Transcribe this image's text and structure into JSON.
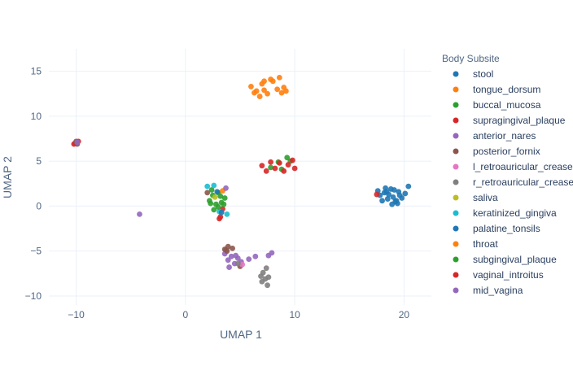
{
  "chart_data": {
    "type": "scatter",
    "title": "",
    "xlabel": "UMAP 1",
    "ylabel": "UMAP 2",
    "xlim": [
      -12.5,
      22.5
    ],
    "ylim": [
      -11,
      17.5
    ],
    "xticks": [
      -10,
      0,
      10,
      20
    ],
    "yticks": [
      -10,
      -5,
      0,
      5,
      10,
      15
    ],
    "grid": true,
    "legend_title": "Body Subsite",
    "legend_position": "right",
    "series": [
      {
        "name": "stool",
        "color": "#1f77b4",
        "points": [
          [
            17.8,
            1.2
          ],
          [
            18.2,
            1.5
          ],
          [
            18.5,
            0.8
          ],
          [
            18.8,
            1.9
          ],
          [
            19.0,
            1.0
          ],
          [
            19.2,
            0.5
          ],
          [
            19.5,
            1.6
          ],
          [
            19.8,
            0.9
          ],
          [
            18.0,
            0.6
          ],
          [
            18.6,
            1.3
          ],
          [
            19.1,
            1.8
          ],
          [
            19.4,
            0.3
          ],
          [
            17.6,
            1.7
          ],
          [
            18.9,
            0.2
          ],
          [
            20.4,
            2.2
          ],
          [
            20.1,
            1.4
          ],
          [
            18.3,
            2.0
          ],
          [
            19.6,
            1.2
          ]
        ]
      },
      {
        "name": "tongue_dorsum",
        "color": "#ff7f0e",
        "points": [
          [
            6.0,
            13.3
          ],
          [
            6.5,
            12.8
          ],
          [
            7.0,
            13.6
          ],
          [
            7.5,
            12.5
          ],
          [
            8.0,
            13.9
          ],
          [
            8.4,
            13.0
          ],
          [
            8.8,
            12.6
          ],
          [
            6.8,
            12.2
          ],
          [
            7.8,
            14.1
          ],
          [
            8.6,
            14.3
          ],
          [
            9.0,
            13.2
          ],
          [
            6.3,
            12.6
          ],
          [
            7.2,
            13.9
          ],
          [
            9.2,
            12.8
          ]
        ]
      },
      {
        "name": "buccal_mucosa",
        "color": "#2ca02c",
        "points": [
          [
            2.2,
            0.6
          ],
          [
            2.5,
            1.2
          ],
          [
            2.8,
            0.2
          ],
          [
            3.0,
            1.5
          ],
          [
            3.3,
            0.4
          ],
          [
            2.6,
            -0.4
          ],
          [
            3.6,
            0.9
          ],
          [
            2.4,
            1.8
          ],
          [
            7.8,
            4.3
          ],
          [
            8.5,
            4.9
          ],
          [
            9.3,
            5.4
          ],
          [
            9.6,
            5.0
          ],
          [
            8.8,
            4.1
          ]
        ]
      },
      {
        "name": "supragingival_plaque",
        "color": "#d62728",
        "points": [
          [
            -10.1,
            7.0
          ],
          [
            -9.8,
            7.2
          ],
          [
            -10.2,
            6.9
          ],
          [
            7.0,
            4.5
          ],
          [
            7.4,
            3.9
          ],
          [
            7.8,
            4.9
          ],
          [
            8.2,
            4.2
          ],
          [
            8.6,
            4.8
          ],
          [
            9.0,
            3.9
          ],
          [
            9.4,
            4.6
          ],
          [
            9.8,
            5.1
          ],
          [
            10.0,
            4.2
          ],
          [
            3.2,
            -1.2
          ],
          [
            3.4,
            -0.3
          ]
        ]
      },
      {
        "name": "anterior_nares",
        "color": "#9467bd",
        "points": [
          [
            -4.2,
            -0.9
          ],
          [
            3.6,
            -5.3
          ],
          [
            3.9,
            -6.0
          ],
          [
            4.2,
            -5.6
          ],
          [
            4.5,
            -6.4
          ],
          [
            4.8,
            -5.8
          ],
          [
            4.0,
            -6.8
          ],
          [
            5.1,
            -6.2
          ],
          [
            3.7,
            -4.9
          ]
        ]
      },
      {
        "name": "posterior_fornix",
        "color": "#8c564b",
        "points": [
          [
            -10.0,
            7.2
          ],
          [
            -9.9,
            6.9
          ],
          [
            3.6,
            -4.8
          ],
          [
            3.9,
            -4.5
          ],
          [
            4.3,
            -4.7
          ],
          [
            3.8,
            -5.0
          ],
          [
            2.0,
            1.5
          ],
          [
            5.0,
            -6.7
          ]
        ]
      },
      {
        "name": "l_retroauricular_crease",
        "color": "#e377c2",
        "points": [
          [
            5.2,
            -6.5
          ]
        ]
      },
      {
        "name": "r_retroauricular_crease",
        "color": "#7f7f7f",
        "points": [
          [
            6.9,
            -7.8
          ],
          [
            7.0,
            -8.4
          ],
          [
            7.1,
            -7.4
          ],
          [
            7.3,
            -8.1
          ],
          [
            7.5,
            -8.8
          ],
          [
            7.4,
            -6.9
          ],
          [
            7.6,
            -7.9
          ],
          [
            4.8,
            -6.4
          ]
        ]
      },
      {
        "name": "saliva",
        "color": "#bcbd22",
        "points": [
          [
            2.7,
            1.0
          ]
        ]
      },
      {
        "name": "keratinized_gingiva",
        "color": "#17becf",
        "points": [
          [
            2.0,
            2.2
          ],
          [
            2.6,
            2.3
          ],
          [
            3.8,
            -0.9
          ],
          [
            3.1,
            -0.6
          ]
        ]
      },
      {
        "name": "palatine_tonsils",
        "color": "#1f77b4",
        "points": [
          [
            2.9,
            1.6
          ],
          [
            3.3,
            -0.7
          ],
          [
            18.4,
            1.6
          ],
          [
            19.3,
            0.6
          ]
        ]
      },
      {
        "name": "throat",
        "color": "#ff7f0e",
        "points": [
          [
            3.4,
            1.7
          ],
          [
            7.2,
            12.9
          ]
        ]
      },
      {
        "name": "subgingival_plaque",
        "color": "#2ca02c",
        "points": [
          [
            3.0,
            -0.1
          ],
          [
            2.3,
            0.3
          ],
          [
            3.5,
            0.2
          ],
          [
            3.2,
            1.1
          ]
        ]
      },
      {
        "name": "vaginal_introitus",
        "color": "#d62728",
        "points": [
          [
            3.1,
            -1.4
          ],
          [
            17.5,
            1.3
          ]
        ]
      },
      {
        "name": "mid_vagina",
        "color": "#9467bd",
        "points": [
          [
            -9.9,
            7.1
          ],
          [
            3.7,
            2.0
          ],
          [
            5.8,
            -5.9
          ],
          [
            6.4,
            -5.6
          ],
          [
            7.6,
            -5.5
          ],
          [
            7.9,
            -5.2
          ],
          [
            4.6,
            -5.5
          ]
        ]
      }
    ]
  }
}
